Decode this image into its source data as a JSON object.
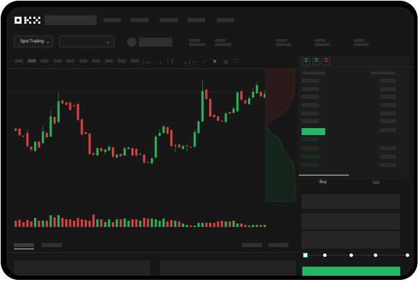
{
  "header": {
    "logo_text": "OKX"
  },
  "toolbar": {
    "market_selector": "Spot Trading",
    "pair_selector": ""
  },
  "order_book": {
    "view_icons": [
      "book-both-icon",
      "book-bids-icon",
      "book-asks-icon"
    ]
  },
  "trade_panel": {
    "tabs": [
      {
        "label": "Buy"
      },
      {
        "label": "Sell"
      }
    ],
    "slider_percent": 0
  },
  "colors": {
    "up": "#26b25b",
    "down": "#d9413f",
    "accent": "#22b761",
    "background": "#171717"
  },
  "chart_data": {
    "type": "candlestick",
    "candles": [
      [
        218,
        215,
        219,
        214
      ],
      [
        218,
        209,
        219,
        208
      ],
      [
        208,
        207,
        209,
        206
      ],
      [
        212,
        194,
        216,
        192
      ],
      [
        193,
        189,
        194,
        187
      ],
      [
        187,
        200,
        197,
        186
      ],
      [
        200,
        192,
        201,
        191
      ],
      [
        198,
        214,
        221,
        197
      ],
      [
        212,
        206,
        213,
        205
      ],
      [
        207,
        235,
        243,
        206
      ],
      [
        234,
        225,
        235,
        224
      ],
      [
        227,
        256,
        268,
        226
      ],
      [
        257,
        253,
        258,
        252
      ],
      [
        254,
        251,
        255,
        250
      ],
      [
        254,
        244,
        256,
        243
      ],
      [
        250,
        249,
        251,
        248
      ],
      [
        252,
        230,
        253,
        229
      ],
      [
        231,
        210,
        232,
        209
      ],
      [
        213,
        211,
        214,
        210
      ],
      [
        211,
        183,
        212,
        182
      ],
      [
        184,
        182,
        185,
        180
      ],
      [
        181,
        191,
        192,
        180
      ],
      [
        191,
        187,
        192,
        186
      ],
      [
        186,
        189,
        190,
        183
      ],
      [
        188,
        193,
        195,
        187
      ],
      [
        192,
        179,
        193,
        177
      ],
      [
        178,
        182,
        183,
        177
      ],
      [
        183,
        180,
        184,
        179
      ],
      [
        181,
        191,
        193,
        180
      ],
      [
        190,
        192,
        193,
        189
      ],
      [
        191,
        181,
        192,
        180
      ],
      [
        190,
        181,
        191,
        179
      ],
      [
        183,
        183,
        184,
        182
      ],
      [
        182,
        171,
        183,
        170
      ],
      [
        172,
        171,
        173,
        170
      ],
      [
        170,
        177,
        178,
        169
      ],
      [
        178,
        207,
        209,
        177
      ],
      [
        208,
        212,
        217,
        207
      ],
      [
        212,
        221,
        223,
        211
      ],
      [
        220,
        211,
        221,
        210
      ],
      [
        216,
        194,
        217,
        193
      ],
      [
        194,
        195,
        197,
        186
      ],
      [
        196,
        192,
        197,
        191
      ],
      [
        190,
        194,
        195,
        189
      ],
      [
        194,
        195,
        196,
        185
      ],
      [
        193,
        192,
        194,
        191
      ],
      [
        193,
        213,
        217,
        192
      ],
      [
        212,
        228,
        230,
        211
      ],
      [
        228,
        270,
        285,
        227
      ],
      [
        272,
        259,
        273,
        258
      ],
      [
        259,
        235,
        260,
        234
      ],
      [
        237,
        234,
        238,
        233
      ],
      [
        235,
        229,
        236,
        228
      ],
      [
        229,
        228,
        230,
        227
      ],
      [
        227,
        239,
        241,
        226
      ],
      [
        241,
        239,
        242,
        238
      ],
      [
        240,
        246,
        248,
        239
      ],
      [
        242,
        268,
        270,
        241
      ],
      [
        270,
        258,
        271,
        257
      ],
      [
        257,
        253,
        258,
        252
      ],
      [
        252,
        260,
        262,
        251
      ],
      [
        261,
        269,
        274,
        260
      ],
      [
        267,
        278,
        282,
        266
      ],
      [
        269,
        263,
        270,
        261
      ],
      [
        261,
        266,
        271,
        260
      ]
    ],
    "volume": [
      9,
      10,
      7,
      10,
      8,
      13,
      9,
      9,
      9,
      17,
      14,
      17,
      13,
      11,
      11,
      9,
      13,
      11,
      10,
      9,
      18,
      11,
      11,
      7,
      11,
      7,
      11,
      11,
      12,
      9,
      11,
      11,
      9,
      13,
      12,
      12,
      11,
      9,
      12,
      8,
      10,
      9,
      8,
      5,
      3,
      2,
      2,
      6,
      6,
      6,
      6,
      6,
      8,
      9,
      8,
      8,
      9,
      5,
      5,
      3,
      2,
      3,
      3,
      3,
      3
    ],
    "ylim": [
      160,
      290
    ]
  }
}
